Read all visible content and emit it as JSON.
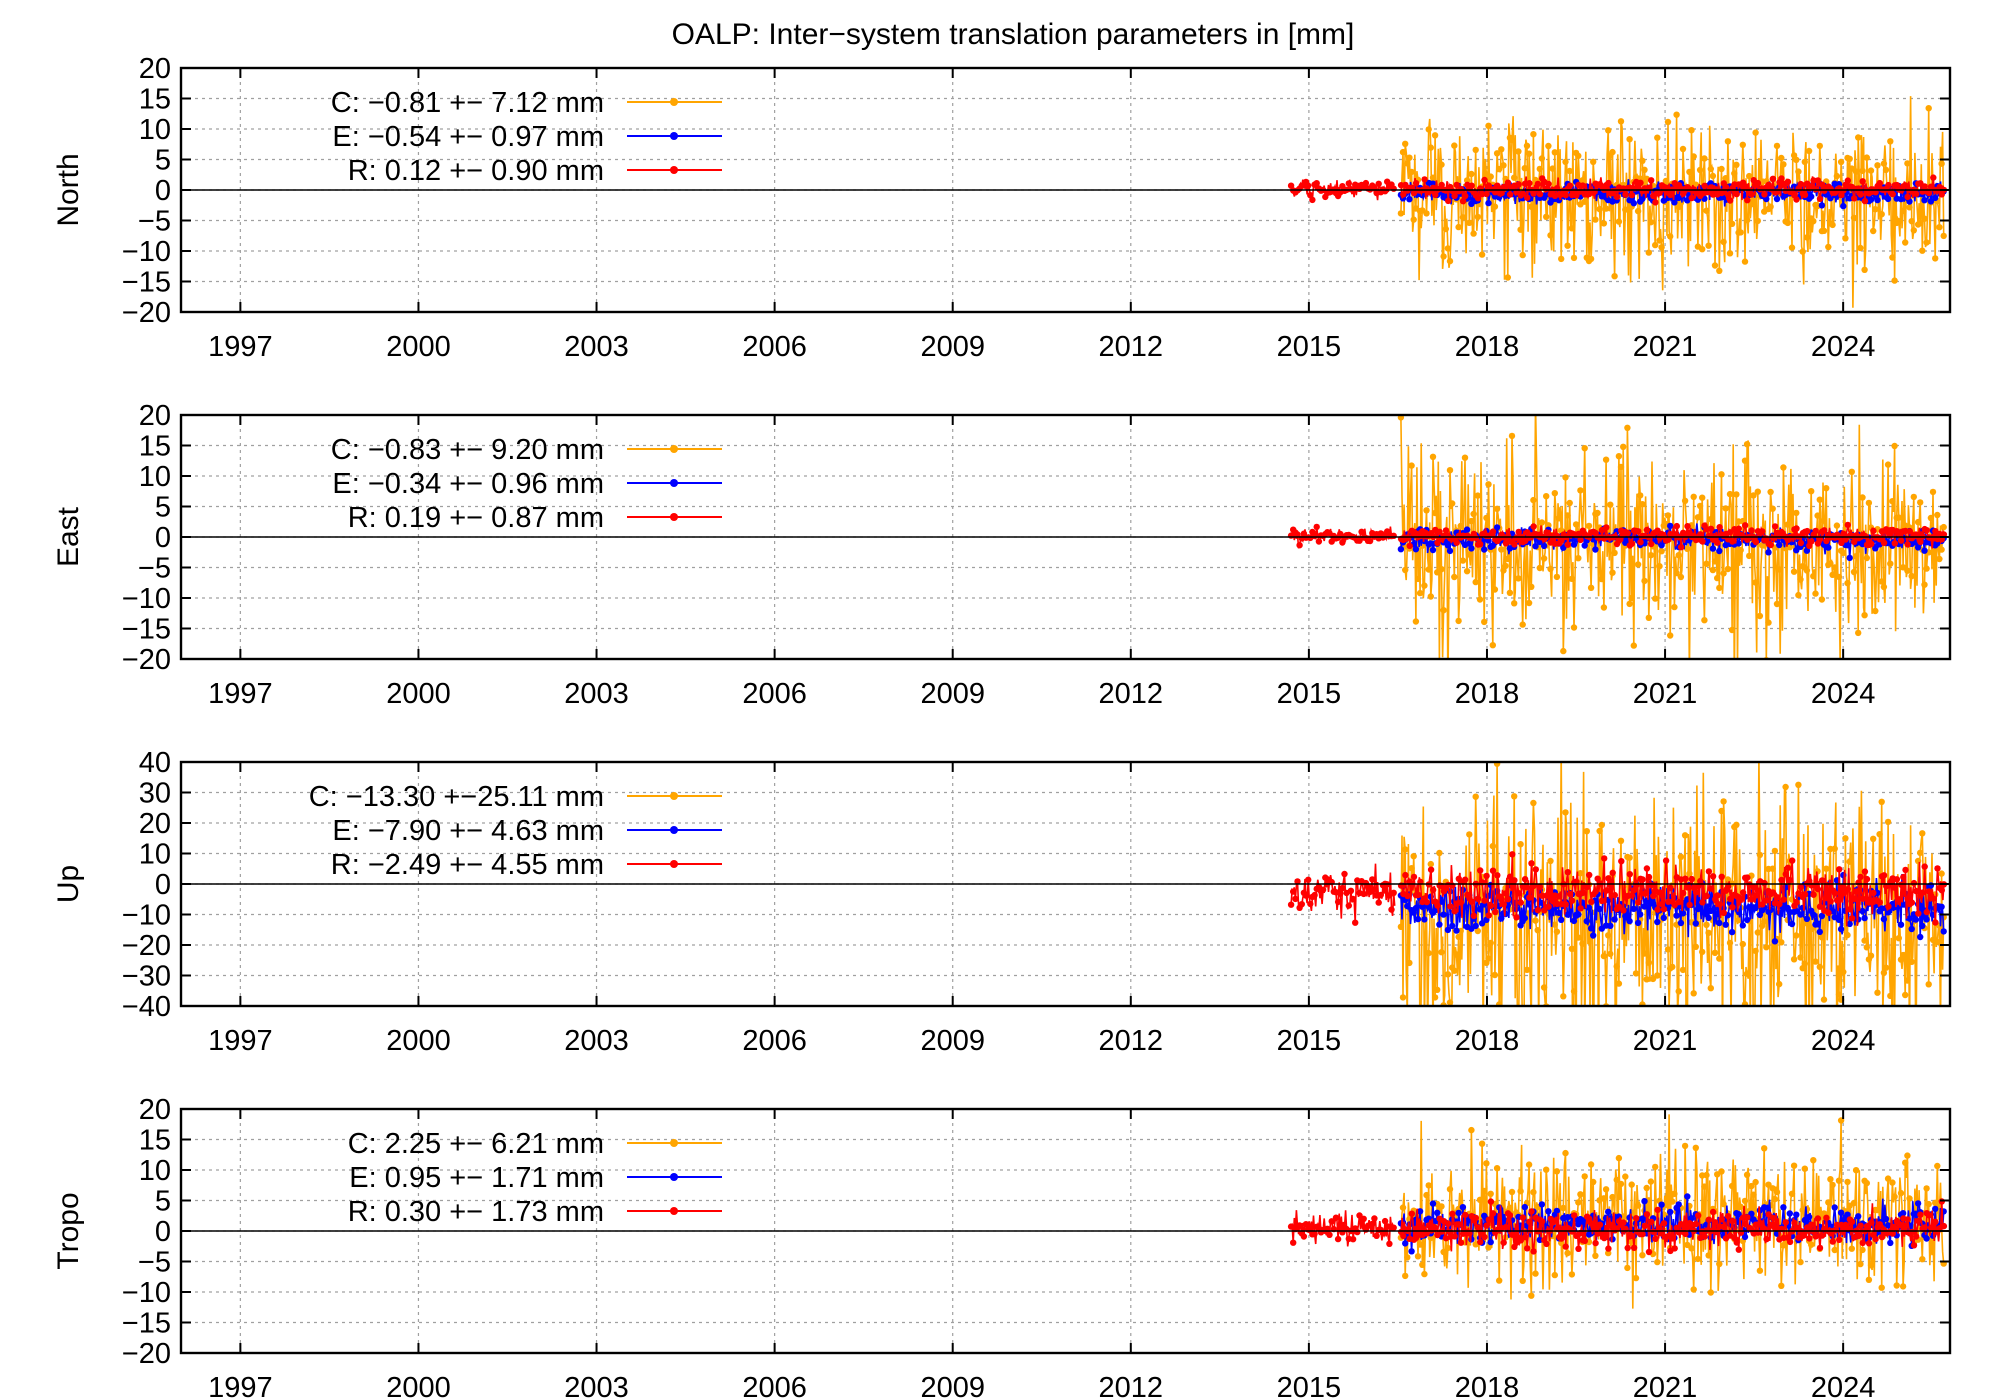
{
  "title": "OALP: Inter−system translation parameters in [mm]",
  "colors": {
    "C": "#ffa500",
    "E": "#0000ff",
    "R": "#ff0000"
  },
  "chart_data": [
    {
      "type": "line",
      "ylabel": "North",
      "ylim": [
        -20,
        20
      ],
      "yticks": [
        -20,
        -15,
        -10,
        -5,
        0,
        5,
        10,
        15,
        20
      ],
      "ytick_labels": [
        "−20",
        "−15",
        "−10",
        "−5",
        "0",
        "5",
        "10",
        "15",
        "20"
      ],
      "xlim": [
        1996,
        2025.8
      ],
      "xticks": [
        1997,
        2000,
        2003,
        2006,
        2009,
        2012,
        2015,
        2018,
        2021,
        2024
      ],
      "xtick_labels": [
        "1997",
        "2000",
        "2003",
        "2006",
        "2009",
        "2012",
        "2015",
        "2018",
        "2021",
        "2024"
      ],
      "grid": true,
      "legend": "top-left",
      "series": [
        {
          "name": "C",
          "label": "C:  −0.81 +− 7.12 mm",
          "mean": -0.81,
          "std": 7.12,
          "start": 2016.55,
          "end": 2025.7
        },
        {
          "name": "E",
          "label": "E:  −0.54 +− 0.97 mm",
          "mean": -0.54,
          "std": 0.97,
          "start": 2016.55,
          "end": 2025.7
        },
        {
          "name": "R",
          "label": "R:   0.12 +− 0.90 mm",
          "mean": 0.12,
          "std": 0.9,
          "start": 2014.7,
          "end": 2025.7
        }
      ]
    },
    {
      "type": "line",
      "ylabel": "East",
      "ylim": [
        -20,
        20
      ],
      "yticks": [
        -20,
        -15,
        -10,
        -5,
        0,
        5,
        10,
        15,
        20
      ],
      "ytick_labels": [
        "−20",
        "−15",
        "−10",
        "−5",
        "0",
        "5",
        "10",
        "15",
        "20"
      ],
      "xlim": [
        1996,
        2025.8
      ],
      "xticks": [
        1997,
        2000,
        2003,
        2006,
        2009,
        2012,
        2015,
        2018,
        2021,
        2024
      ],
      "xtick_labels": [
        "1997",
        "2000",
        "2003",
        "2006",
        "2009",
        "2012",
        "2015",
        "2018",
        "2021",
        "2024"
      ],
      "grid": true,
      "legend": "top-left",
      "series": [
        {
          "name": "C",
          "label": "C:  −0.83 +− 9.20 mm",
          "mean": -0.83,
          "std": 9.2,
          "start": 2016.55,
          "end": 2025.7
        },
        {
          "name": "E",
          "label": "E:  −0.34 +− 0.96 mm",
          "mean": -0.34,
          "std": 0.96,
          "start": 2016.55,
          "end": 2025.7
        },
        {
          "name": "R",
          "label": "R:   0.19 +− 0.87 mm",
          "mean": 0.19,
          "std": 0.87,
          "start": 2014.7,
          "end": 2025.7
        }
      ]
    },
    {
      "type": "line",
      "ylabel": "Up",
      "ylim": [
        -40,
        40
      ],
      "yticks": [
        -40,
        -30,
        -20,
        -10,
        0,
        10,
        20,
        30,
        40
      ],
      "ytick_labels": [
        "−40",
        "−30",
        "−20",
        "−10",
        "0",
        "10",
        "20",
        "30",
        "40"
      ],
      "xlim": [
        1996,
        2025.8
      ],
      "xticks": [
        1997,
        2000,
        2003,
        2006,
        2009,
        2012,
        2015,
        2018,
        2021,
        2024
      ],
      "xtick_labels": [
        "1997",
        "2000",
        "2003",
        "2006",
        "2009",
        "2012",
        "2015",
        "2018",
        "2021",
        "2024"
      ],
      "grid": true,
      "legend": "top-left",
      "series": [
        {
          "name": "C",
          "label": "C: −13.30 +−25.11 mm",
          "mean": -13.3,
          "std": 25.11,
          "start": 2016.55,
          "end": 2025.7
        },
        {
          "name": "E",
          "label": "E:  −7.90 +− 4.63 mm",
          "mean": -7.9,
          "std": 4.63,
          "start": 2016.55,
          "end": 2025.7
        },
        {
          "name": "R",
          "label": "R:  −2.49 +− 4.55 mm",
          "mean": -2.49,
          "std": 4.55,
          "start": 2014.7,
          "end": 2025.7
        }
      ]
    },
    {
      "type": "line",
      "ylabel": "Tropo",
      "ylim": [
        -20,
        20
      ],
      "yticks": [
        -20,
        -15,
        -10,
        -5,
        0,
        5,
        10,
        15,
        20
      ],
      "ytick_labels": [
        "−20",
        "−15",
        "−10",
        "−5",
        "0",
        "5",
        "10",
        "15",
        "20"
      ],
      "xlim": [
        1996,
        2025.8
      ],
      "xticks": [
        1997,
        2000,
        2003,
        2006,
        2009,
        2012,
        2015,
        2018,
        2021,
        2024
      ],
      "xtick_labels": [
        "1997",
        "2000",
        "2003",
        "2006",
        "2009",
        "2012",
        "2015",
        "2018",
        "2021",
        "2024"
      ],
      "grid": true,
      "legend": "top-left",
      "series": [
        {
          "name": "C",
          "label": "C:   2.25 +− 6.21 mm",
          "mean": 2.25,
          "std": 6.21,
          "start": 2016.55,
          "end": 2025.7
        },
        {
          "name": "E",
          "label": "E:   0.95 +− 1.71 mm",
          "mean": 0.95,
          "std": 1.71,
          "start": 2016.55,
          "end": 2025.7
        },
        {
          "name": "R",
          "label": "R:   0.30 +− 1.73 mm",
          "mean": 0.3,
          "std": 1.73,
          "start": 2014.7,
          "end": 2025.7
        }
      ]
    }
  ]
}
